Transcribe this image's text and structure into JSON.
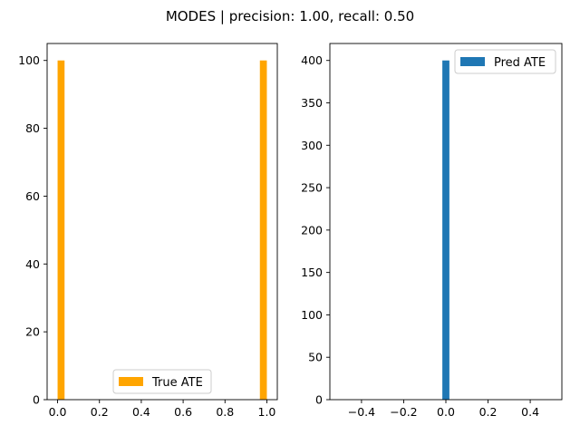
{
  "figure": {
    "suptitle": "MODES | precision: 1.00, recall: 0.50"
  },
  "chart_data": [
    {
      "type": "bar",
      "series": [
        {
          "name": "True ATE",
          "color": "#ffa500",
          "bins": [
            {
              "x0": 0.0,
              "x1": 0.0333,
              "value": 100
            },
            {
              "x0": 0.9667,
              "x1": 1.0,
              "value": 100
            }
          ]
        }
      ],
      "xlim": [
        -0.05,
        1.05
      ],
      "ylim": [
        0,
        105
      ],
      "xticks": [
        0.0,
        0.2,
        0.4,
        0.6,
        0.8,
        1.0
      ],
      "xtick_labels": [
        "0.0",
        "0.2",
        "0.4",
        "0.6",
        "0.8",
        "1.0"
      ],
      "yticks": [
        0,
        20,
        40,
        60,
        80,
        100
      ],
      "ytick_labels": [
        "0",
        "20",
        "40",
        "60",
        "80",
        "100"
      ],
      "legend_position": "lower-center",
      "grid": false
    },
    {
      "type": "bar",
      "series": [
        {
          "name": "Pred ATE",
          "color": "#1f77b4",
          "bins": [
            {
              "x0": -0.0167,
              "x1": 0.0167,
              "value": 400
            }
          ]
        }
      ],
      "xlim": [
        -0.55,
        0.55
      ],
      "ylim": [
        0,
        420
      ],
      "xticks": [
        -0.4,
        -0.2,
        0.0,
        0.2,
        0.4
      ],
      "xtick_labels": [
        "−0.4",
        "−0.2",
        "0.0",
        "0.2",
        "0.4"
      ],
      "yticks": [
        0,
        50,
        100,
        150,
        200,
        250,
        300,
        350,
        400
      ],
      "ytick_labels": [
        "0",
        "50",
        "100",
        "150",
        "200",
        "250",
        "300",
        "350",
        "400"
      ],
      "legend_position": "top-right",
      "grid": false
    }
  ]
}
